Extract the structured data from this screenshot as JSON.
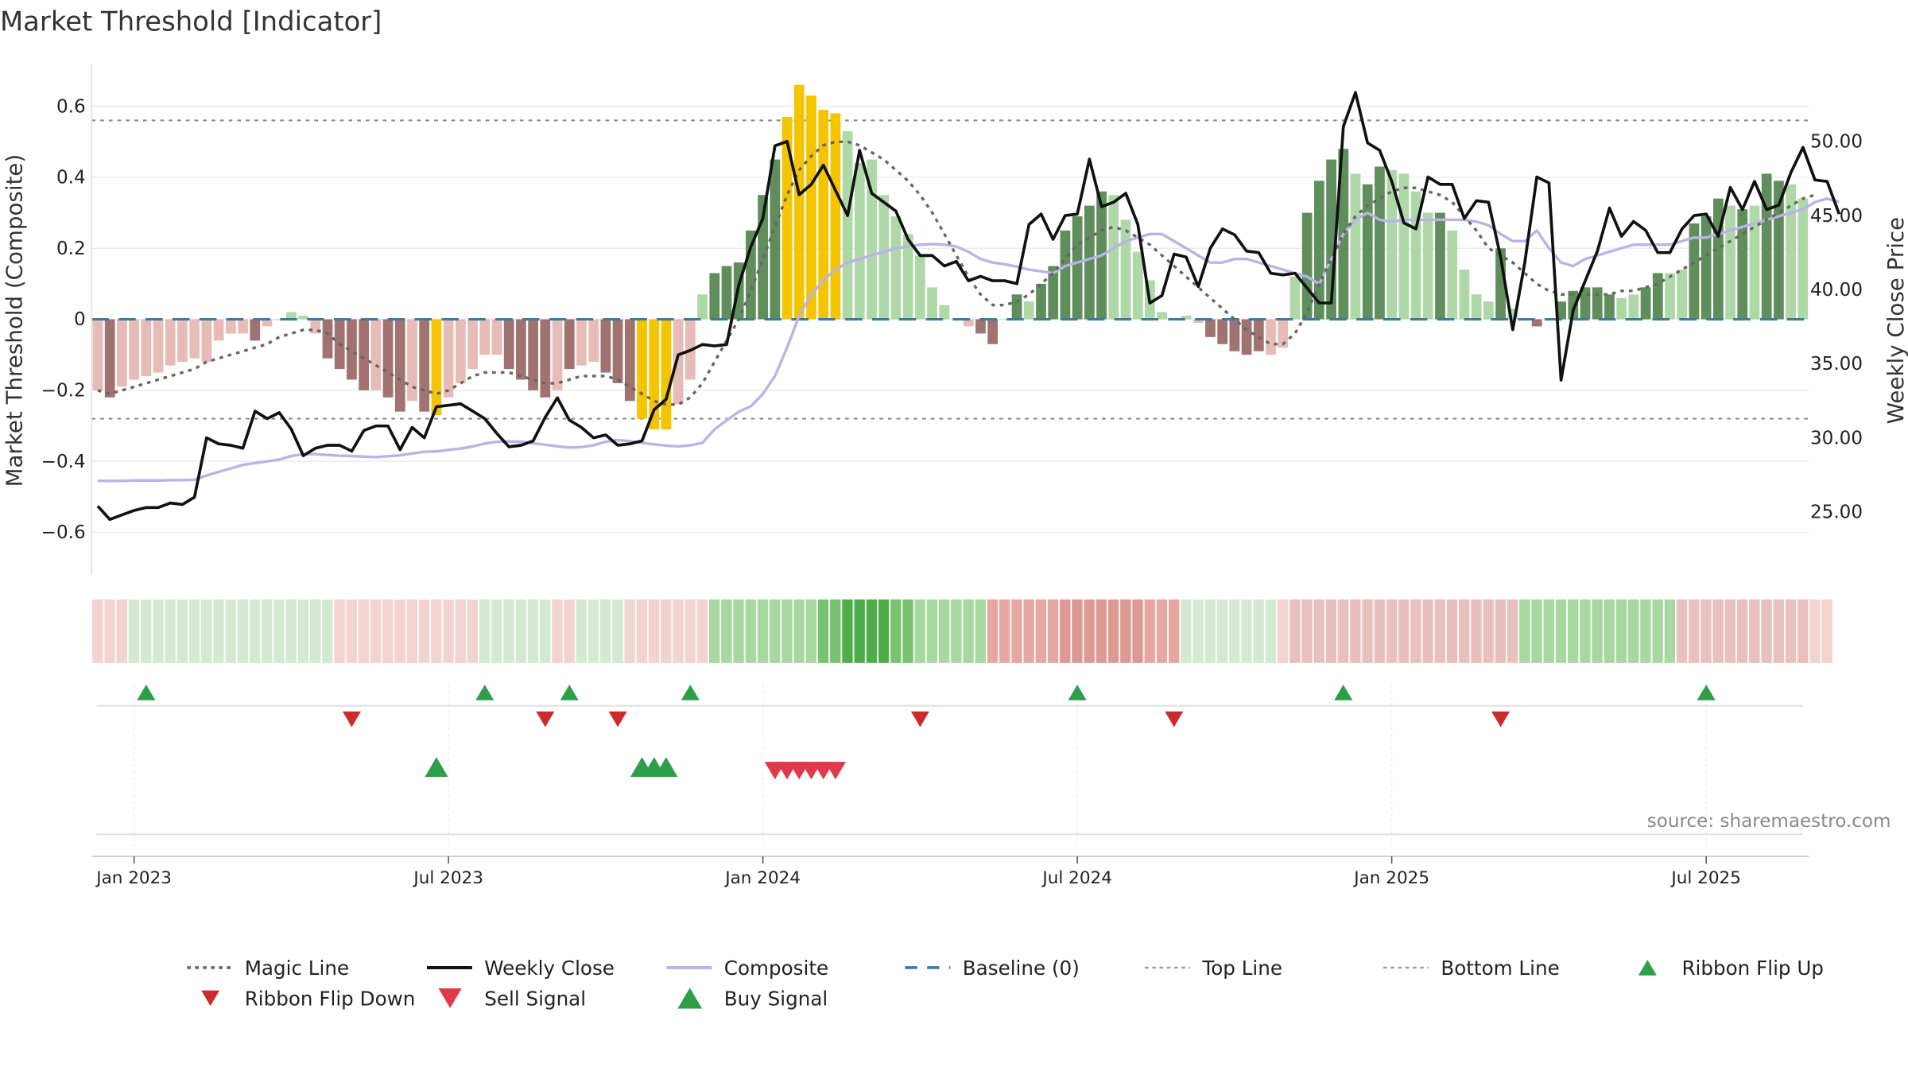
{
  "title": "Market Threshold [Indicator]",
  "source": "source: sharemaestro.com",
  "chart_data": {
    "type": "bar",
    "ylabel": "Market Threshold (Composite)",
    "y2label": "Weekly Close Price",
    "ylim": [
      -0.72,
      0.72
    ],
    "y2lim": [
      20.75,
      55.25
    ],
    "yticks": [
      "0.6",
      "0.4",
      "0.2",
      "0",
      "−0.2",
      "−0.4",
      "−0.6"
    ],
    "ytick_values": [
      0.6,
      0.4,
      0.2,
      0,
      -0.2,
      -0.4,
      -0.6
    ],
    "y2ticks": [
      "50.00",
      "45.00",
      "40.00",
      "35.00",
      "30.00",
      "25.00"
    ],
    "y2tick_values": [
      50,
      45,
      40,
      35,
      30,
      25
    ],
    "xticks": [
      "Jan 2023",
      "Jul 2023",
      "Jan 2024",
      "Jul 2024",
      "Jan 2025",
      "Jul 2025"
    ],
    "xtick_weeks": [
      3,
      29,
      55,
      81,
      107,
      133
    ],
    "top_line": 0.56,
    "bottom_line": -0.28,
    "composite_bars": [
      -0.2,
      -0.22,
      -0.19,
      -0.17,
      -0.16,
      -0.15,
      -0.13,
      -0.12,
      -0.11,
      -0.12,
      -0.06,
      -0.04,
      -0.04,
      -0.06,
      -0.02,
      0.0,
      0.02,
      0.01,
      -0.04,
      -0.11,
      -0.14,
      -0.17,
      -0.2,
      -0.2,
      -0.22,
      -0.26,
      -0.23,
      -0.26,
      -0.27,
      -0.22,
      -0.18,
      -0.14,
      -0.1,
      -0.1,
      -0.14,
      -0.17,
      -0.2,
      -0.22,
      -0.2,
      -0.14,
      -0.13,
      -0.12,
      -0.15,
      -0.18,
      -0.23,
      -0.28,
      -0.31,
      -0.31,
      -0.24,
      -0.17,
      0.07,
      0.13,
      0.15,
      0.16,
      0.25,
      0.35,
      0.45,
      0.57,
      0.66,
      0.63,
      0.59,
      0.58,
      0.53,
      0.44,
      0.45,
      0.35,
      0.29,
      0.24,
      0.18,
      0.09,
      0.04,
      0.0,
      -0.02,
      -0.04,
      -0.07,
      0.0,
      0.07,
      0.05,
      0.1,
      0.15,
      0.25,
      0.29,
      0.32,
      0.36,
      0.35,
      0.28,
      0.19,
      0.11,
      0.02,
      0.0,
      0.01,
      -0.01,
      -0.05,
      -0.07,
      -0.09,
      -0.1,
      -0.09,
      -0.1,
      -0.08,
      0.12,
      0.3,
      0.39,
      0.45,
      0.48,
      0.41,
      0.38,
      0.43,
      0.42,
      0.41,
      0.36,
      0.3,
      0.3,
      0.25,
      0.14,
      0.07,
      0.05,
      0.2,
      0.03,
      0.0,
      -0.02,
      0.0,
      0.05,
      0.08,
      0.09,
      0.09,
      0.07,
      0.06,
      0.07,
      0.09,
      0.13,
      0.13,
      0.14,
      0.27,
      0.29,
      0.34,
      0.32,
      0.31,
      0.32,
      0.41,
      0.39,
      0.38,
      0.34
    ],
    "bar_colors": [
      "#e8bcb6",
      "#a07370",
      "#e8bcb6",
      "#e8bcb6",
      "#e8bcb6",
      "#e8bcb6",
      "#e8bcb6",
      "#e8bcb6",
      "#e8bcb6",
      "#e8bcb6",
      "#e8bcb6",
      "#e8bcb6",
      "#e8bcb6",
      "#a07370",
      "#e8bcb6",
      "#e8bcb6",
      "#afd8a8",
      "#afd8a8",
      "#e8bcb6",
      "#a07370",
      "#a07370",
      "#a07370",
      "#a07370",
      "#e8bcb6",
      "#a07370",
      "#a07370",
      "#e8bcb6",
      "#a07370",
      "#f5c400",
      "#e8bcb6",
      "#e8bcb6",
      "#e8bcb6",
      "#e8bcb6",
      "#e8bcb6",
      "#a07370",
      "#a07370",
      "#a07370",
      "#a07370",
      "#e8bcb6",
      "#a07370",
      "#e8bcb6",
      "#e8bcb6",
      "#a07370",
      "#a07370",
      "#a07370",
      "#f5c400",
      "#f5c400",
      "#f5c400",
      "#e8bcb6",
      "#e8bcb6",
      "#afd8a8",
      "#5f8e5c",
      "#5f8e5c",
      "#5f8e5c",
      "#5f8e5c",
      "#5f8e5c",
      "#5f8e5c",
      "#f5c400",
      "#f5c400",
      "#f5c400",
      "#f5c400",
      "#f5c400",
      "#afd8a8",
      "#afd8a8",
      "#afd8a8",
      "#afd8a8",
      "#afd8a8",
      "#afd8a8",
      "#afd8a8",
      "#afd8a8",
      "#afd8a8",
      "#afd8a8",
      "#e8bcb6",
      "#a07370",
      "#a07370",
      "#afd8a8",
      "#5f8e5c",
      "#afd8a8",
      "#5f8e5c",
      "#5f8e5c",
      "#5f8e5c",
      "#5f8e5c",
      "#5f8e5c",
      "#5f8e5c",
      "#afd8a8",
      "#afd8a8",
      "#afd8a8",
      "#afd8a8",
      "#afd8a8",
      "#afd8a8",
      "#afd8a8",
      "#e8bcb6",
      "#a07370",
      "#a07370",
      "#a07370",
      "#a07370",
      "#a07370",
      "#e8bcb6",
      "#e8bcb6",
      "#afd8a8",
      "#5f8e5c",
      "#5f8e5c",
      "#5f8e5c",
      "#5f8e5c",
      "#afd8a8",
      "#5f8e5c",
      "#5f8e5c",
      "#afd8a8",
      "#afd8a8",
      "#afd8a8",
      "#afd8a8",
      "#5f8e5c",
      "#afd8a8",
      "#afd8a8",
      "#afd8a8",
      "#afd8a8",
      "#5f8e5c",
      "#afd8a8",
      "#afd8a8",
      "#a07370",
      "#afd8a8",
      "#5f8e5c",
      "#5f8e5c",
      "#5f8e5c",
      "#5f8e5c",
      "#5f8e5c",
      "#afd8a8",
      "#afd8a8",
      "#5f8e5c",
      "#5f8e5c",
      "#afd8a8",
      "#afd8a8",
      "#5f8e5c",
      "#5f8e5c",
      "#5f8e5c",
      "#afd8a8",
      "#5f8e5c",
      "#afd8a8",
      "#5f8e5c",
      "#5f8e5c",
      "#afd8a8",
      "#afd8a8"
    ],
    "series": [
      {
        "name": "Magic Line",
        "color": "#666666",
        "style": "dotted",
        "axis": "left",
        "values": [
          -0.2,
          -0.21,
          -0.2,
          -0.19,
          -0.18,
          -0.17,
          -0.16,
          -0.15,
          -0.14,
          -0.12,
          -0.11,
          -0.1,
          -0.09,
          -0.08,
          -0.07,
          -0.05,
          -0.04,
          -0.03,
          -0.03,
          -0.04,
          -0.07,
          -0.09,
          -0.11,
          -0.13,
          -0.15,
          -0.17,
          -0.19,
          -0.2,
          -0.21,
          -0.2,
          -0.18,
          -0.16,
          -0.15,
          -0.15,
          -0.15,
          -0.16,
          -0.17,
          -0.18,
          -0.18,
          -0.17,
          -0.16,
          -0.16,
          -0.16,
          -0.17,
          -0.19,
          -0.21,
          -0.23,
          -0.24,
          -0.24,
          -0.22,
          -0.18,
          -0.12,
          -0.06,
          0.0,
          0.08,
          0.17,
          0.26,
          0.35,
          0.42,
          0.46,
          0.49,
          0.5,
          0.5,
          0.49,
          0.47,
          0.45,
          0.42,
          0.39,
          0.35,
          0.3,
          0.24,
          0.18,
          0.12,
          0.07,
          0.04,
          0.04,
          0.05,
          0.07,
          0.1,
          0.13,
          0.17,
          0.21,
          0.23,
          0.25,
          0.26,
          0.25,
          0.23,
          0.21,
          0.18,
          0.15,
          0.12,
          0.09,
          0.06,
          0.03,
          0.0,
          -0.03,
          -0.05,
          -0.07,
          -0.07,
          -0.04,
          0.02,
          0.1,
          0.17,
          0.24,
          0.29,
          0.32,
          0.34,
          0.36,
          0.37,
          0.37,
          0.36,
          0.35,
          0.33,
          0.29,
          0.25,
          0.2,
          0.18,
          0.16,
          0.13,
          0.1,
          0.08,
          0.07,
          0.07,
          0.07,
          0.07,
          0.07,
          0.08,
          0.08,
          0.09,
          0.1,
          0.12,
          0.14,
          0.16,
          0.18,
          0.2,
          0.22,
          0.24,
          0.26,
          0.28,
          0.3,
          0.32,
          0.34,
          0.35
        ]
      },
      {
        "name": "Weekly Close",
        "color": "#111111",
        "style": "solid",
        "axis": "right",
        "values": [
          25.4,
          24.5,
          24.8,
          25.1,
          25.3,
          25.3,
          25.6,
          25.5,
          26.0,
          30.0,
          29.6,
          29.5,
          29.3,
          31.8,
          31.3,
          31.7,
          30.6,
          28.8,
          29.3,
          29.5,
          29.5,
          29.1,
          30.5,
          30.8,
          30.8,
          29.2,
          30.7,
          30.0,
          32.1,
          32.2,
          32.3,
          31.8,
          31.3,
          30.3,
          29.4,
          29.5,
          29.8,
          31.4,
          32.7,
          31.2,
          30.7,
          30.0,
          30.2,
          29.5,
          29.6,
          29.8,
          31.9,
          32.6,
          35.6,
          35.9,
          36.3,
          36.2,
          36.3,
          40.3,
          42.9,
          44.8,
          49.7,
          50.0,
          46.4,
          47.1,
          48.4,
          46.7,
          45.0,
          49.4,
          46.5,
          45.9,
          45.3,
          43.4,
          42.3,
          42.3,
          41.6,
          41.9,
          40.6,
          40.9,
          40.6,
          40.6,
          40.4,
          44.4,
          45.1,
          43.4,
          45.0,
          45.1,
          48.8,
          45.6,
          45.9,
          46.5,
          44.4,
          39.1,
          39.6,
          42.4,
          42.2,
          40.2,
          42.8,
          44.1,
          43.7,
          42.6,
          42.5,
          41.1,
          41.0,
          41.1,
          40.1,
          39.1,
          39.1,
          51.0,
          53.3,
          49.9,
          49.4,
          47.3,
          44.5,
          44.1,
          47.6,
          47.1,
          47.1,
          44.8,
          46.0,
          45.9,
          42.2,
          37.3,
          41.8,
          47.6,
          47.2,
          33.9,
          38.6,
          40.6,
          42.6,
          45.5,
          43.6,
          44.6,
          44.0,
          42.5,
          42.5,
          44.1,
          45.0,
          45.1,
          43.6,
          46.9,
          45.4,
          47.3,
          45.4,
          45.7,
          47.9,
          49.6,
          47.4,
          47.3,
          45.1
        ]
      },
      {
        "name": "Composite",
        "color": "#b9b3e6",
        "style": "solid",
        "axis": "left",
        "values": [
          -0.455,
          -0.455,
          -0.455,
          -0.454,
          -0.454,
          -0.454,
          -0.453,
          -0.453,
          -0.452,
          -0.44,
          -0.43,
          -0.42,
          -0.41,
          -0.405,
          -0.4,
          -0.395,
          -0.385,
          -0.38,
          -0.38,
          -0.382,
          -0.384,
          -0.385,
          -0.387,
          -0.388,
          -0.386,
          -0.383,
          -0.378,
          -0.373,
          -0.372,
          -0.368,
          -0.364,
          -0.358,
          -0.35,
          -0.345,
          -0.344,
          -0.345,
          -0.349,
          -0.353,
          -0.358,
          -0.361,
          -0.36,
          -0.355,
          -0.345,
          -0.34,
          -0.343,
          -0.348,
          -0.352,
          -0.356,
          -0.358,
          -0.355,
          -0.348,
          -0.31,
          -0.285,
          -0.26,
          -0.245,
          -0.21,
          -0.16,
          -0.08,
          0.01,
          0.07,
          0.11,
          0.14,
          0.16,
          0.17,
          0.18,
          0.19,
          0.2,
          0.205,
          0.21,
          0.212,
          0.21,
          0.205,
          0.19,
          0.17,
          0.16,
          0.155,
          0.148,
          0.14,
          0.135,
          0.13,
          0.15,
          0.16,
          0.17,
          0.18,
          0.2,
          0.22,
          0.23,
          0.24,
          0.24,
          0.22,
          0.2,
          0.18,
          0.16,
          0.16,
          0.17,
          0.17,
          0.16,
          0.15,
          0.14,
          0.13,
          0.12,
          0.1,
          0.17,
          0.24,
          0.28,
          0.3,
          0.28,
          0.275,
          0.28,
          0.28,
          0.28,
          0.28,
          0.28,
          0.28,
          0.275,
          0.265,
          0.24,
          0.22,
          0.22,
          0.25,
          0.2,
          0.16,
          0.15,
          0.17,
          0.18,
          0.19,
          0.2,
          0.21,
          0.21,
          0.21,
          0.21,
          0.22,
          0.23,
          0.23,
          0.24,
          0.25,
          0.26,
          0.27,
          0.28,
          0.29,
          0.3,
          0.31,
          0.33,
          0.34,
          0.33
        ]
      }
    ],
    "ribbon_colors": [
      "#f2d3d0",
      "#f2d3d0",
      "#f2d3d0",
      "#d3ead0",
      "#d3ead0",
      "#d3ead0",
      "#d3ead0",
      "#d3ead0",
      "#d3ead0",
      "#d3ead0",
      "#d3ead0",
      "#d3ead0",
      "#d3ead0",
      "#d3ead0",
      "#d3ead0",
      "#d3ead0",
      "#d3ead0",
      "#d3ead0",
      "#d3ead0",
      "#d3ead0",
      "#f2d3d0",
      "#f2d3d0",
      "#f2d3d0",
      "#f2d3d0",
      "#f2d3d0",
      "#f2d3d0",
      "#f2d3d0",
      "#f2d3d0",
      "#f2d3d0",
      "#f2d3d0",
      "#f2d3d0",
      "#f2d3d0",
      "#d3ead0",
      "#d3ead0",
      "#d3ead0",
      "#d3ead0",
      "#d3ead0",
      "#d3ead0",
      "#f2d3d0",
      "#f2d3d0",
      "#d3ead0",
      "#d3ead0",
      "#d3ead0",
      "#d3ead0",
      "#f2d3d0",
      "#f2d3d0",
      "#f2d3d0",
      "#f2d3d0",
      "#f2d3d0",
      "#f2d3d0",
      "#f2d3d0",
      "#a7d8a0",
      "#a7d8a0",
      "#a7d8a0",
      "#a7d8a0",
      "#a7d8a0",
      "#a7d8a0",
      "#a7d8a0",
      "#a7d8a0",
      "#a7d8a0",
      "#79c271",
      "#79c271",
      "#4fae4a",
      "#4fae4a",
      "#4fae4a",
      "#4fae4a",
      "#79c271",
      "#79c271",
      "#a7d8a0",
      "#a7d8a0",
      "#a7d8a0",
      "#a7d8a0",
      "#a7d8a0",
      "#a7d8a0",
      "#e5a7a0",
      "#e5a7a0",
      "#e5a7a0",
      "#e5a7a0",
      "#e5a7a0",
      "#e5a7a0",
      "#dc9a93",
      "#dc9a93",
      "#dc9a93",
      "#dc9a93",
      "#dc9a93",
      "#dc9a93",
      "#dc9a93",
      "#e5a7a0",
      "#e5a7a0",
      "#e5a7a0",
      "#d3ead0",
      "#d3ead0",
      "#d3ead0",
      "#d3ead0",
      "#d3ead0",
      "#d3ead0",
      "#d3ead0",
      "#d3ead0",
      "#f2d3d0",
      "#e9c0bb",
      "#e9c0bb",
      "#e9c0bb",
      "#e9c0bb",
      "#e9c0bb",
      "#e9c0bb",
      "#e9c0bb",
      "#e9c0bb",
      "#e9c0bb",
      "#e9c0bb",
      "#e9c0bb",
      "#e9c0bb",
      "#e9c0bb",
      "#e9c0bb",
      "#e9c0bb",
      "#e9c0bb",
      "#e9c0bb",
      "#e9c0bb",
      "#e9c0bb",
      "#a7d8a0",
      "#a7d8a0",
      "#a7d8a0",
      "#a7d8a0",
      "#a7d8a0",
      "#a7d8a0",
      "#a7d8a0",
      "#a7d8a0",
      "#a7d8a0",
      "#a7d8a0",
      "#a7d8a0",
      "#a7d8a0",
      "#a7d8a0",
      "#e9c0bb",
      "#e9c0bb",
      "#e9c0bb",
      "#e9c0bb",
      "#e9c0bb",
      "#e9c0bb",
      "#e9c0bb",
      "#e9c0bb",
      "#e9c0bb",
      "#e9c0bb",
      "#e9c0bb",
      "#f2d3d0",
      "#f2d3d0"
    ],
    "markers": {
      "ribbon_flip_up_weeks": [
        4,
        32,
        39,
        49,
        81,
        103,
        133
      ],
      "ribbon_flip_down_weeks": [
        21,
        37,
        43,
        68,
        89,
        116
      ],
      "buy_signal_weeks": [
        28,
        45,
        46,
        47
      ],
      "sell_signal_weeks": [
        56,
        57,
        58,
        59,
        60,
        61
      ]
    }
  },
  "legend": [
    {
      "label": "Magic Line",
      "kind": "dotted",
      "color": "#666666"
    },
    {
      "label": "Weekly Close",
      "kind": "solid",
      "color": "#111111"
    },
    {
      "label": "Composite",
      "kind": "solid",
      "color": "#b9b3e6"
    },
    {
      "label": "Baseline (0)",
      "kind": "dashed",
      "color": "#3a7ca5"
    },
    {
      "label": "Top Line",
      "kind": "dotted-thin",
      "color": "#999999"
    },
    {
      "label": "Bottom Line",
      "kind": "dotted-thin",
      "color": "#999999"
    },
    {
      "label": "Ribbon Flip Up",
      "kind": "tri-up-small",
      "color": "#2e9e4a"
    },
    {
      "label": "Ribbon Flip Down",
      "kind": "tri-down-small",
      "color": "#cc2b2b"
    },
    {
      "label": "Sell Signal",
      "kind": "tri-down",
      "color": "#e03a4a"
    },
    {
      "label": "Buy Signal",
      "kind": "tri-up",
      "color": "#2e9e4a"
    }
  ]
}
